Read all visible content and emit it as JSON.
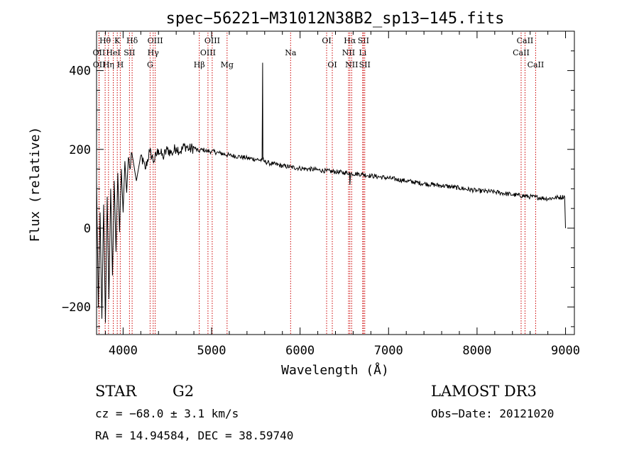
{
  "chart_data": {
    "type": "line",
    "title": "spec−56221−M31012N38B2_sp13−145.fits",
    "xlabel": "Wavelength (Å)",
    "ylabel": "Flux (relative)",
    "xlim": [
      3700,
      9100
    ],
    "ylim": [
      -270,
      500
    ],
    "x_ticks": [
      4000,
      5000,
      6000,
      7000,
      8000,
      9000
    ],
    "x_tick_labels": [
      "4000",
      "5000",
      "6000",
      "7000",
      "8000",
      "9000"
    ],
    "y_ticks": [
      -200,
      0,
      200,
      400
    ],
    "y_tick_labels": [
      "−200",
      "0",
      "200",
      "400"
    ],
    "x_minor_step": 200,
    "y_minor_step": 50,
    "grid": false,
    "series": [
      {
        "name": "flux",
        "x": [
          3700,
          3720,
          3740,
          3760,
          3780,
          3800,
          3820,
          3840,
          3860,
          3880,
          3900,
          3920,
          3940,
          3960,
          3980,
          4000,
          4020,
          4040,
          4060,
          4080,
          4100,
          4150,
          4200,
          4250,
          4300,
          4350,
          4400,
          4450,
          4500,
          4550,
          4600,
          4650,
          4700,
          4750,
          4800,
          4850,
          4900,
          4950,
          5000,
          5100,
          5200,
          5300,
          5400,
          5500,
          5570,
          5577,
          5580,
          5590,
          5650,
          5700,
          5800,
          5900,
          6000,
          6100,
          6200,
          6300,
          6400,
          6500,
          6560,
          6563,
          6570,
          6700,
          6800,
          6900,
          7000,
          7200,
          7400,
          7600,
          7800,
          8000,
          8200,
          8400,
          8600,
          8800,
          8990,
          9000
        ],
        "values": [
          120,
          -200,
          40,
          -230,
          60,
          -240,
          80,
          -180,
          100,
          -120,
          120,
          -60,
          140,
          -10,
          150,
          40,
          170,
          90,
          180,
          150,
          190,
          120,
          185,
          150,
          195,
          170,
          200,
          180,
          200,
          190,
          205,
          195,
          210,
          200,
          205,
          195,
          200,
          195,
          195,
          190,
          185,
          182,
          178,
          175,
          172,
          420,
          175,
          170,
          165,
          163,
          158,
          155,
          152,
          150,
          148,
          145,
          143,
          141,
          140,
          110,
          139,
          137,
          133,
          130,
          127,
          120,
          113,
          108,
          102,
          95,
          92,
          85,
          80,
          75,
          80,
          0
        ]
      }
    ],
    "lines": [
      {
        "label": "Hθ",
        "x": 3797,
        "row": 0
      },
      {
        "label": "K",
        "x": 3934,
        "row": 0
      },
      {
        "label": "Hδ",
        "x": 4102,
        "row": 0
      },
      {
        "label": "OIII",
        "x": 4363,
        "row": 0
      },
      {
        "label": "OIII",
        "x": 5007,
        "row": 0
      },
      {
        "label": "OI",
        "x": 6300,
        "row": 0
      },
      {
        "label": "Hα",
        "x": 6563,
        "row": 0
      },
      {
        "label": "SII",
        "x": 6716,
        "row": 0
      },
      {
        "label": "CaII",
        "x": 8542,
        "row": 0
      },
      {
        "label": "OII",
        "x": 3727,
        "row": 1
      },
      {
        "label": "HeI",
        "x": 3889,
        "row": 1
      },
      {
        "label": "SII",
        "x": 4072,
        "row": 1
      },
      {
        "label": "Hγ",
        "x": 4340,
        "row": 1
      },
      {
        "label": "OIII",
        "x": 4959,
        "row": 1
      },
      {
        "label": "Na",
        "x": 5893,
        "row": 1
      },
      {
        "label": "NII",
        "x": 6548,
        "row": 1
      },
      {
        "label": "Li",
        "x": 6708,
        "row": 1
      },
      {
        "label": "CaII",
        "x": 8498,
        "row": 1
      },
      {
        "label": "OII",
        "x": 3729,
        "row": 2
      },
      {
        "label": "Hη",
        "x": 3835,
        "row": 2
      },
      {
        "label": "H",
        "x": 3968,
        "row": 2
      },
      {
        "label": "G",
        "x": 4305,
        "row": 2
      },
      {
        "label": "Hβ",
        "x": 4861,
        "row": 2
      },
      {
        "label": "Mg",
        "x": 5175,
        "row": 2
      },
      {
        "label": "OI",
        "x": 6364,
        "row": 2
      },
      {
        "label": "NII",
        "x": 6583,
        "row": 2
      },
      {
        "label": "SII",
        "x": 6731,
        "row": 2
      },
      {
        "label": "CaII",
        "x": 8662,
        "row": 2
      }
    ]
  },
  "info": {
    "class": "STAR",
    "subclass": "G2",
    "survey": "LAMOST DR3",
    "cz": "cz = −68.0 ± 3.1 km/s",
    "obs_date": "Obs−Date: 20121020",
    "radec": "RA =  14.94584, DEC =  38.59740"
  },
  "colors": {
    "line_marker": "#cc0000",
    "spectrum": "#000000",
    "axes": "#000000"
  }
}
